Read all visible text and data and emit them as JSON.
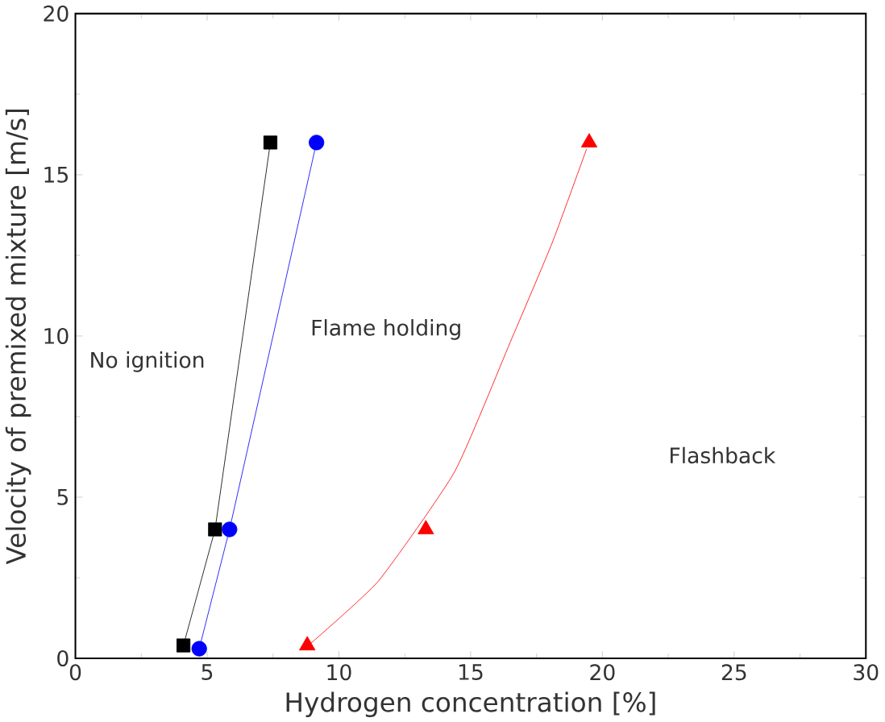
{
  "chart_data": {
    "type": "line",
    "xlabel": "Hydrogen concentration [%]",
    "ylabel": "Velocity of premixed mixture [m/s]",
    "xlim": [
      0,
      30
    ],
    "ylim": [
      0,
      20
    ],
    "xticks": [
      0,
      5,
      10,
      15,
      20,
      25,
      30
    ],
    "yticks": [
      0,
      5,
      10,
      15,
      20
    ],
    "grid": false,
    "series": [
      {
        "marker": "square",
        "color": "#000000",
        "x": [
          4.1,
          5.3,
          7.4
        ],
        "values": [
          0.4,
          4,
          16
        ]
      },
      {
        "marker": "circle",
        "color": "#0000ff",
        "x": [
          4.7,
          5.85,
          9.15
        ],
        "values": [
          0.3,
          4,
          16
        ]
      },
      {
        "type": "scatter",
        "marker": "triangle",
        "color": "#ff0000",
        "x": [
          8.8,
          13.3,
          19.5
        ],
        "values": [
          0.4,
          4,
          16
        ]
      },
      {
        "marker": "none",
        "color": "#ff0000",
        "x": [
          8.84,
          11.5,
          14.4,
          16.5,
          18.1,
          19.4
        ],
        "values": [
          0.4,
          2.4,
          5.8,
          9.8,
          12.9,
          15.8
        ]
      }
    ],
    "annotations": [
      "No ignition",
      "Flame holding",
      "Flashback"
    ]
  }
}
